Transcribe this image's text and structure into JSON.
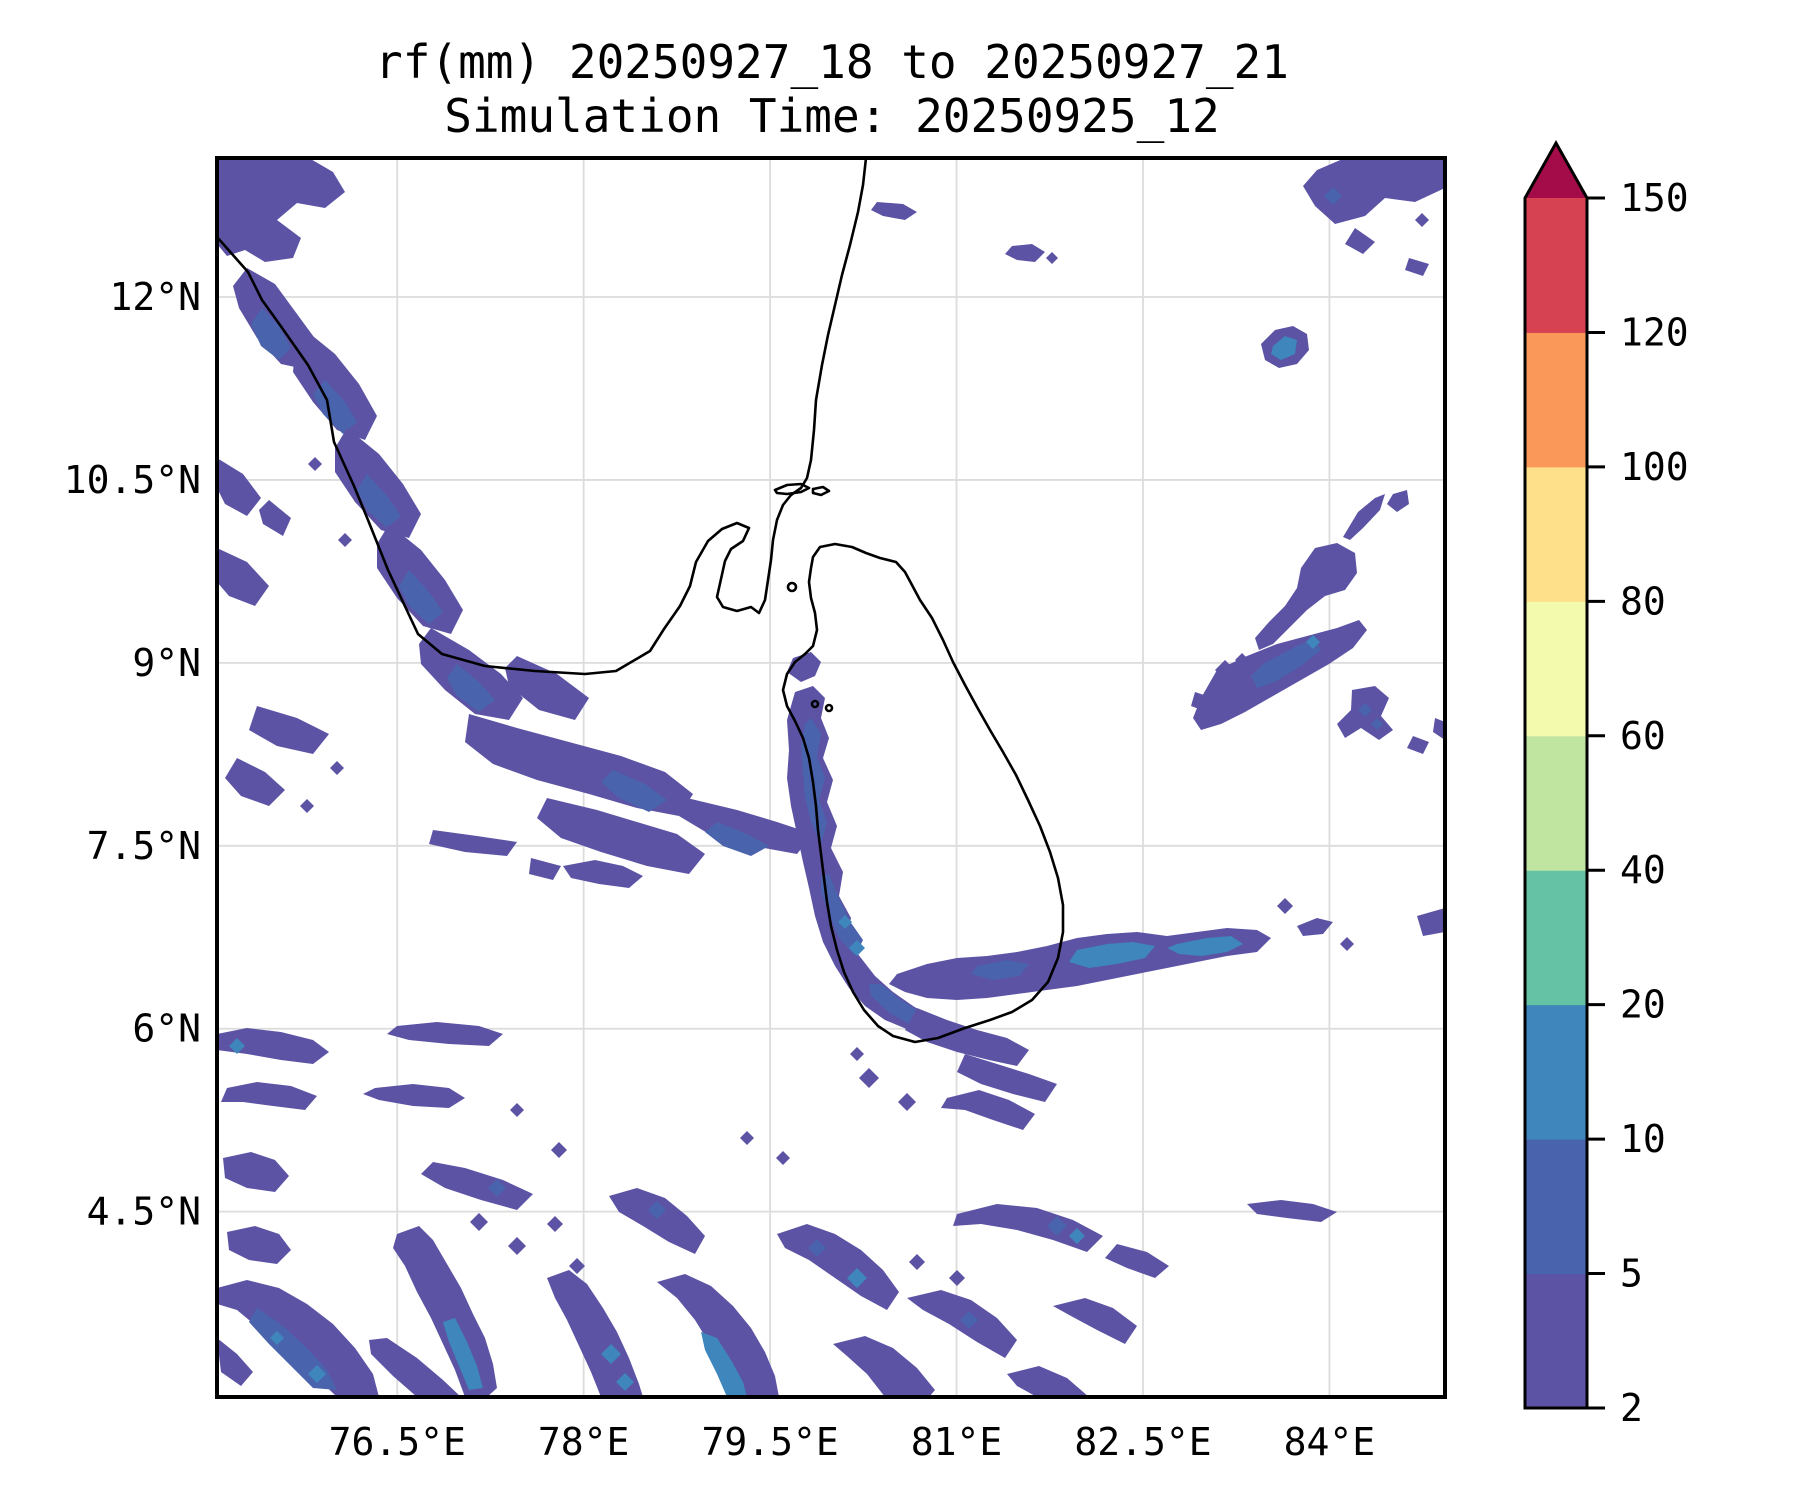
{
  "title": {
    "line1": "rf(mm) 20250927_18 to 20250927_21",
    "line2": "Simulation Time: 20250925_12"
  },
  "chart_data": {
    "type": "heatmap",
    "subtype": "filled-contour-precipitation-map",
    "variable": "rf(mm)",
    "valid_period": "20250927_18 to 20250927_21",
    "simulation_time": "20250925_12",
    "region": "Southern India and Sri Lanka",
    "grid": true,
    "grid_color": "#dcdcdc",
    "background": "#ffffff",
    "coastline_color": "#000000",
    "x_axis": {
      "tick_labels": [
        "76.5°E",
        "78°E",
        "79.5°E",
        "81°E",
        "82.5°E",
        "84°E"
      ],
      "tick_values": [
        76.5,
        78,
        79.5,
        81,
        82.5,
        84
      ],
      "lon_min": 75.05,
      "lon_max": 84.93
    },
    "y_axis": {
      "tick_labels": [
        "12°N",
        "10.5°N",
        "9°N",
        "7.5°N",
        "6°N",
        "4.5°N"
      ],
      "tick_values": [
        12,
        10.5,
        9,
        7.5,
        6,
        4.5
      ],
      "lat_min": 2.98,
      "lat_max": 13.14
    },
    "colorbar": {
      "position": "right",
      "levels": [
        2,
        5,
        10,
        20,
        40,
        60,
        80,
        100,
        120,
        150
      ],
      "tick_labels": [
        "2",
        "5",
        "10",
        "20",
        "40",
        "60",
        "80",
        "100",
        "120",
        "150"
      ],
      "colors": [
        "#5c53a5",
        "#4a63ad",
        "#3e86bb",
        "#66c2a5",
        "#bfe5a0",
        "#f3faad",
        "#fee08b",
        "#f99859",
        "#d74253"
      ],
      "extend": "max",
      "extend_color": "#a30c49"
    },
    "map_fill_summary": "Rainfall mostly 2-5 mm (purple) with 5-10 mm (indigo) and 10-20 mm (blue) cores; bands along Indian west coast, Sri Lanka west coast, NE-SW streaks over the far right, and dense NW-SE streaks across the lower third of the domain; values above 20 mm not present on map."
  }
}
